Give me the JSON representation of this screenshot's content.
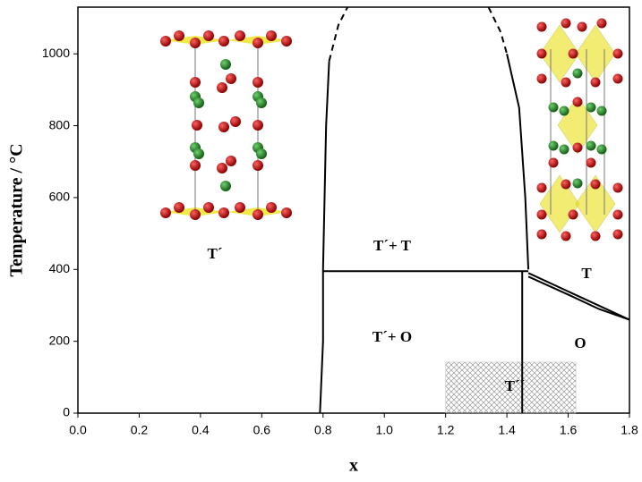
{
  "chart_data": {
    "type": "line",
    "x_label": "x",
    "y_label": "Temperature / °C",
    "xlim": [
      0,
      1.8
    ],
    "ylim": [
      0,
      1130
    ],
    "xticks": [
      {
        "value": 0,
        "label": "0.0"
      },
      0.2,
      0.4,
      0.6,
      0.8,
      {
        "value": 1,
        "label": "1.0"
      },
      1.2,
      1.4,
      1.6,
      1.8
    ],
    "yticks": [
      0,
      200,
      400,
      600,
      800,
      1000
    ],
    "series": [
      {
        "color": "#000000",
        "dashed": false,
        "x": [
          0.79,
          0.8,
          0.8,
          0.81,
          0.82
        ],
        "values": [
          0,
          200,
          400,
          800,
          980
        ]
      },
      {
        "color": "#000000",
        "dashed": true,
        "x": [
          0.82,
          0.85,
          0.88
        ],
        "values": [
          980,
          1080,
          1130
        ]
      },
      {
        "color": "#000000",
        "dashed": true,
        "x": [
          1.34,
          1.38,
          1.4
        ],
        "values": [
          1130,
          1060,
          1000
        ]
      },
      {
        "color": "#000000",
        "dashed": false,
        "x": [
          1.4,
          1.44,
          1.46,
          1.47
        ],
        "values": [
          1000,
          850,
          600,
          400
        ]
      },
      {
        "color": "#000000",
        "dashed": false,
        "x": [
          0.8,
          1.47
        ],
        "values": [
          395,
          395
        ]
      },
      {
        "color": "#000000",
        "dashed": false,
        "x": [
          1.45,
          1.45
        ],
        "values": [
          395,
          0
        ]
      },
      {
        "color": "#000000",
        "dashed": false,
        "x": [
          1.47,
          1.8
        ],
        "values": [
          390,
          260
        ]
      },
      {
        "color": "#000000",
        "dashed": false,
        "x": [
          1.47,
          1.6,
          1.7,
          1.8
        ],
        "values": [
          380,
          330,
          290,
          260
        ]
      }
    ],
    "shaded_region": {
      "x": [
        1.2,
        1.625
      ],
      "y": [
        0,
        142
      ]
    },
    "region_labels": [
      "T´",
      "T´+ T",
      "T´+ O",
      "T",
      "O",
      "T´´"
    ]
  }
}
